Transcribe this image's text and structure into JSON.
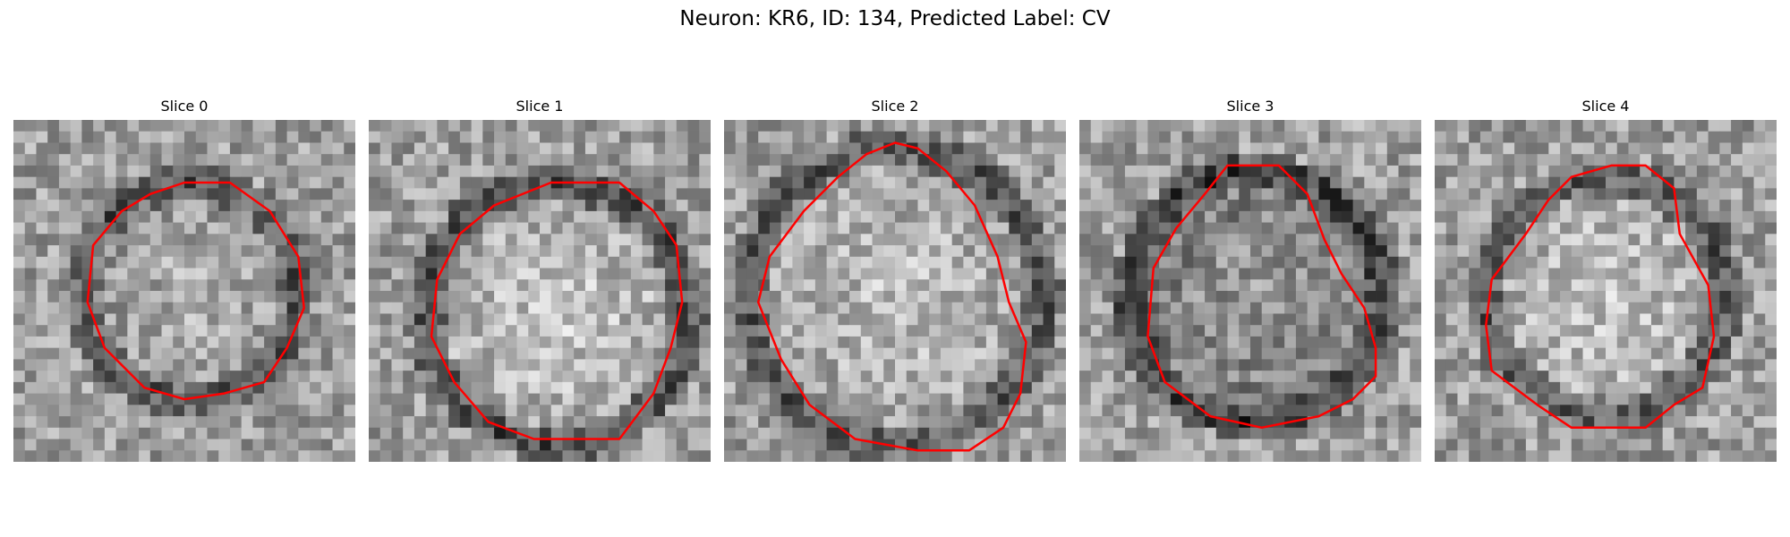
{
  "figure": {
    "title": "Neuron: KR6, ID: 134, Predicted Label: CV"
  },
  "panels": [
    {
      "title": "Slice 0"
    },
    {
      "title": "Slice 1"
    },
    {
      "title": "Slice 2"
    },
    {
      "title": "Slice 3"
    },
    {
      "title": "Slice 4"
    }
  ],
  "colors": {
    "contour": "#ff0000",
    "background": "#ffffff"
  }
}
